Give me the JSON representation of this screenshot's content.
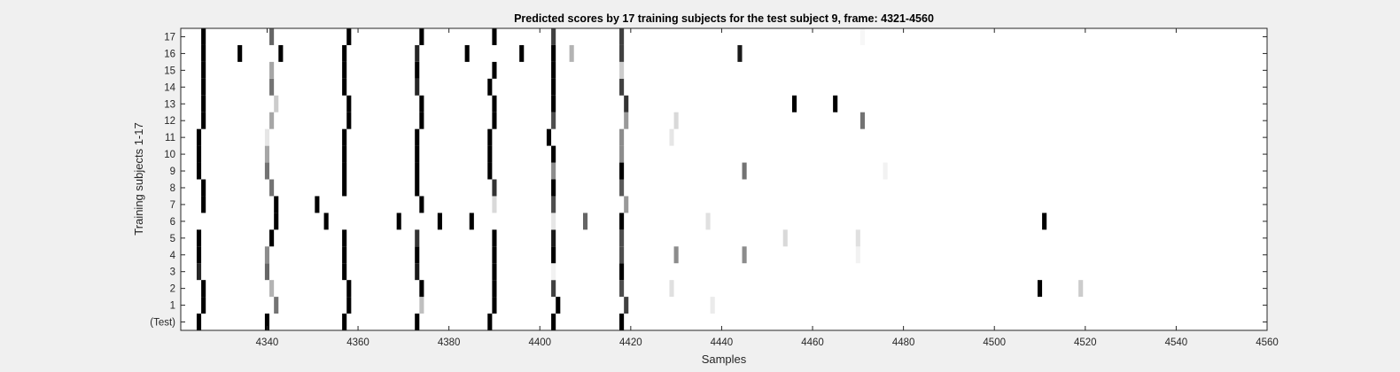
{
  "window": {
    "background": "#f0f0f0"
  },
  "chart_data": {
    "type": "heatmap",
    "title": "Predicted scores by 17 training subjects for the test subject 9, frame: 4321-4560",
    "xlabel": "Samples",
    "ylabel": "Training subjects 1-17",
    "xlim": [
      4321,
      4560
    ],
    "xticks": [
      4340,
      4360,
      4380,
      4400,
      4420,
      4440,
      4460,
      4480,
      4500,
      4520,
      4540,
      4560
    ],
    "rows": [
      "(Test)",
      "1",
      "2",
      "3",
      "4",
      "5",
      "6",
      "7",
      "8",
      "9",
      "10",
      "11",
      "12",
      "13",
      "14",
      "15",
      "16",
      "17"
    ],
    "colormap": "gray-inverted",
    "value_range": [
      0,
      1
    ],
    "cells": [
      {
        "row": "(Test)",
        "x": 4325,
        "v": 1.0
      },
      {
        "row": "(Test)",
        "x": 4340,
        "v": 1.0
      },
      {
        "row": "(Test)",
        "x": 4357,
        "v": 1.0
      },
      {
        "row": "(Test)",
        "x": 4373,
        "v": 1.0
      },
      {
        "row": "(Test)",
        "x": 4389,
        "v": 1.0
      },
      {
        "row": "(Test)",
        "x": 4403,
        "v": 1.0
      },
      {
        "row": "(Test)",
        "x": 4418,
        "v": 1.0
      },
      {
        "row": "1",
        "x": 4326,
        "v": 1.0
      },
      {
        "row": "1",
        "x": 4342,
        "v": 0.55
      },
      {
        "row": "1",
        "x": 4358,
        "v": 1.0
      },
      {
        "row": "1",
        "x": 4374,
        "v": 0.25
      },
      {
        "row": "1",
        "x": 4390,
        "v": 1.0
      },
      {
        "row": "1",
        "x": 4404,
        "v": 1.0
      },
      {
        "row": "1",
        "x": 4419,
        "v": 0.75
      },
      {
        "row": "1",
        "x": 4438,
        "v": 0.08
      },
      {
        "row": "2",
        "x": 4326,
        "v": 1.0
      },
      {
        "row": "2",
        "x": 4341,
        "v": 0.3
      },
      {
        "row": "2",
        "x": 4358,
        "v": 1.0
      },
      {
        "row": "2",
        "x": 4374,
        "v": 1.0
      },
      {
        "row": "2",
        "x": 4390,
        "v": 1.0
      },
      {
        "row": "2",
        "x": 4403,
        "v": 0.75
      },
      {
        "row": "2",
        "x": 4418,
        "v": 0.7
      },
      {
        "row": "2",
        "x": 4429,
        "v": 0.12
      },
      {
        "row": "2",
        "x": 4510,
        "v": 1.0
      },
      {
        "row": "2",
        "x": 4519,
        "v": 0.2
      },
      {
        "row": "3",
        "x": 4325,
        "v": 0.85
      },
      {
        "row": "3",
        "x": 4340,
        "v": 0.6
      },
      {
        "row": "3",
        "x": 4357,
        "v": 1.0
      },
      {
        "row": "3",
        "x": 4373,
        "v": 0.9
      },
      {
        "row": "3",
        "x": 4390,
        "v": 1.0
      },
      {
        "row": "3",
        "x": 4403,
        "v": 0.05
      },
      {
        "row": "3",
        "x": 4418,
        "v": 1.0
      },
      {
        "row": "4",
        "x": 4325,
        "v": 1.0
      },
      {
        "row": "4",
        "x": 4340,
        "v": 0.45
      },
      {
        "row": "4",
        "x": 4357,
        "v": 1.0
      },
      {
        "row": "4",
        "x": 4373,
        "v": 1.0
      },
      {
        "row": "4",
        "x": 4390,
        "v": 1.0
      },
      {
        "row": "4",
        "x": 4403,
        "v": 1.0
      },
      {
        "row": "4",
        "x": 4418,
        "v": 0.7
      },
      {
        "row": "4",
        "x": 4430,
        "v": 0.45
      },
      {
        "row": "4",
        "x": 4445,
        "v": 0.45
      },
      {
        "row": "4",
        "x": 4470,
        "v": 0.05
      },
      {
        "row": "5",
        "x": 4325,
        "v": 1.0
      },
      {
        "row": "5",
        "x": 4341,
        "v": 1.0
      },
      {
        "row": "5",
        "x": 4357,
        "v": 1.0
      },
      {
        "row": "5",
        "x": 4373,
        "v": 0.8
      },
      {
        "row": "5",
        "x": 4390,
        "v": 1.0
      },
      {
        "row": "5",
        "x": 4403,
        "v": 0.9
      },
      {
        "row": "5",
        "x": 4418,
        "v": 0.7
      },
      {
        "row": "5",
        "x": 4454,
        "v": 0.15
      },
      {
        "row": "5",
        "x": 4470,
        "v": 0.12
      },
      {
        "row": "6",
        "x": 4342,
        "v": 1.0
      },
      {
        "row": "6",
        "x": 4353,
        "v": 1.0
      },
      {
        "row": "6",
        "x": 4369,
        "v": 1.0
      },
      {
        "row": "6",
        "x": 4378,
        "v": 1.0
      },
      {
        "row": "6",
        "x": 4385,
        "v": 1.0
      },
      {
        "row": "6",
        "x": 4403,
        "v": 0.1
      },
      {
        "row": "6",
        "x": 4410,
        "v": 0.6
      },
      {
        "row": "6",
        "x": 4418,
        "v": 1.0
      },
      {
        "row": "6",
        "x": 4437,
        "v": 0.12
      },
      {
        "row": "6",
        "x": 4511,
        "v": 1.0
      },
      {
        "row": "7",
        "x": 4326,
        "v": 1.0
      },
      {
        "row": "7",
        "x": 4342,
        "v": 1.0
      },
      {
        "row": "7",
        "x": 4351,
        "v": 1.0
      },
      {
        "row": "7",
        "x": 4374,
        "v": 1.0
      },
      {
        "row": "7",
        "x": 4390,
        "v": 0.15
      },
      {
        "row": "7",
        "x": 4403,
        "v": 0.7
      },
      {
        "row": "7",
        "x": 4419,
        "v": 0.4
      },
      {
        "row": "8",
        "x": 4326,
        "v": 1.0
      },
      {
        "row": "8",
        "x": 4341,
        "v": 0.55
      },
      {
        "row": "8",
        "x": 4357,
        "v": 1.0
      },
      {
        "row": "8",
        "x": 4373,
        "v": 1.0
      },
      {
        "row": "8",
        "x": 4390,
        "v": 0.8
      },
      {
        "row": "8",
        "x": 4403,
        "v": 1.0
      },
      {
        "row": "8",
        "x": 4418,
        "v": 0.65
      },
      {
        "row": "9",
        "x": 4325,
        "v": 1.0
      },
      {
        "row": "9",
        "x": 4340,
        "v": 0.55
      },
      {
        "row": "9",
        "x": 4357,
        "v": 1.0
      },
      {
        "row": "9",
        "x": 4373,
        "v": 1.0
      },
      {
        "row": "9",
        "x": 4389,
        "v": 1.0
      },
      {
        "row": "9",
        "x": 4403,
        "v": 0.45
      },
      {
        "row": "9",
        "x": 4418,
        "v": 1.0
      },
      {
        "row": "9",
        "x": 4445,
        "v": 0.55
      },
      {
        "row": "9",
        "x": 4476,
        "v": 0.05
      },
      {
        "row": "10",
        "x": 4325,
        "v": 1.0
      },
      {
        "row": "10",
        "x": 4340,
        "v": 0.35
      },
      {
        "row": "10",
        "x": 4357,
        "v": 1.0
      },
      {
        "row": "10",
        "x": 4373,
        "v": 1.0
      },
      {
        "row": "10",
        "x": 4389,
        "v": 1.0
      },
      {
        "row": "10",
        "x": 4403,
        "v": 1.0
      },
      {
        "row": "10",
        "x": 4418,
        "v": 0.45
      },
      {
        "row": "11",
        "x": 4325,
        "v": 1.0
      },
      {
        "row": "11",
        "x": 4340,
        "v": 0.1
      },
      {
        "row": "11",
        "x": 4357,
        "v": 1.0
      },
      {
        "row": "11",
        "x": 4373,
        "v": 1.0
      },
      {
        "row": "11",
        "x": 4389,
        "v": 1.0
      },
      {
        "row": "11",
        "x": 4402,
        "v": 1.0
      },
      {
        "row": "11",
        "x": 4418,
        "v": 0.45
      },
      {
        "row": "11",
        "x": 4429,
        "v": 0.1
      },
      {
        "row": "12",
        "x": 4326,
        "v": 1.0
      },
      {
        "row": "12",
        "x": 4341,
        "v": 0.35
      },
      {
        "row": "12",
        "x": 4358,
        "v": 1.0
      },
      {
        "row": "12",
        "x": 4374,
        "v": 1.0
      },
      {
        "row": "12",
        "x": 4390,
        "v": 1.0
      },
      {
        "row": "12",
        "x": 4403,
        "v": 0.7
      },
      {
        "row": "12",
        "x": 4419,
        "v": 0.4
      },
      {
        "row": "12",
        "x": 4430,
        "v": 0.15
      },
      {
        "row": "12",
        "x": 4471,
        "v": 0.55
      },
      {
        "row": "13",
        "x": 4326,
        "v": 1.0
      },
      {
        "row": "13",
        "x": 4342,
        "v": 0.2
      },
      {
        "row": "13",
        "x": 4358,
        "v": 1.0
      },
      {
        "row": "13",
        "x": 4374,
        "v": 1.0
      },
      {
        "row": "13",
        "x": 4390,
        "v": 1.0
      },
      {
        "row": "13",
        "x": 4403,
        "v": 1.0
      },
      {
        "row": "13",
        "x": 4419,
        "v": 0.8
      },
      {
        "row": "13",
        "x": 4456,
        "v": 1.0
      },
      {
        "row": "13",
        "x": 4465,
        "v": 1.0
      },
      {
        "row": "14",
        "x": 4326,
        "v": 1.0
      },
      {
        "row": "14",
        "x": 4341,
        "v": 0.55
      },
      {
        "row": "14",
        "x": 4357,
        "v": 1.0
      },
      {
        "row": "14",
        "x": 4373,
        "v": 0.85
      },
      {
        "row": "14",
        "x": 4389,
        "v": 1.0
      },
      {
        "row": "14",
        "x": 4403,
        "v": 1.0
      },
      {
        "row": "14",
        "x": 4418,
        "v": 0.75
      },
      {
        "row": "15",
        "x": 4326,
        "v": 1.0
      },
      {
        "row": "15",
        "x": 4341,
        "v": 0.35
      },
      {
        "row": "15",
        "x": 4357,
        "v": 1.0
      },
      {
        "row": "15",
        "x": 4373,
        "v": 1.0
      },
      {
        "row": "15",
        "x": 4390,
        "v": 1.0
      },
      {
        "row": "15",
        "x": 4403,
        "v": 1.0
      },
      {
        "row": "15",
        "x": 4418,
        "v": 0.2
      },
      {
        "row": "16",
        "x": 4326,
        "v": 1.0
      },
      {
        "row": "16",
        "x": 4334,
        "v": 1.0
      },
      {
        "row": "16",
        "x": 4343,
        "v": 1.0
      },
      {
        "row": "16",
        "x": 4357,
        "v": 1.0
      },
      {
        "row": "16",
        "x": 4373,
        "v": 0.85
      },
      {
        "row": "16",
        "x": 4384,
        "v": 1.0
      },
      {
        "row": "16",
        "x": 4396,
        "v": 1.0
      },
      {
        "row": "16",
        "x": 4403,
        "v": 1.0
      },
      {
        "row": "16",
        "x": 4407,
        "v": 0.3
      },
      {
        "row": "16",
        "x": 4418,
        "v": 0.75
      },
      {
        "row": "16",
        "x": 4444,
        "v": 0.9
      },
      {
        "row": "17",
        "x": 4326,
        "v": 1.0
      },
      {
        "row": "17",
        "x": 4341,
        "v": 0.6
      },
      {
        "row": "17",
        "x": 4358,
        "v": 1.0
      },
      {
        "row": "17",
        "x": 4374,
        "v": 1.0
      },
      {
        "row": "17",
        "x": 4390,
        "v": 1.0
      },
      {
        "row": "17",
        "x": 4403,
        "v": 0.75
      },
      {
        "row": "17",
        "x": 4418,
        "v": 0.75
      },
      {
        "row": "17",
        "x": 4471,
        "v": 0.03
      }
    ]
  }
}
